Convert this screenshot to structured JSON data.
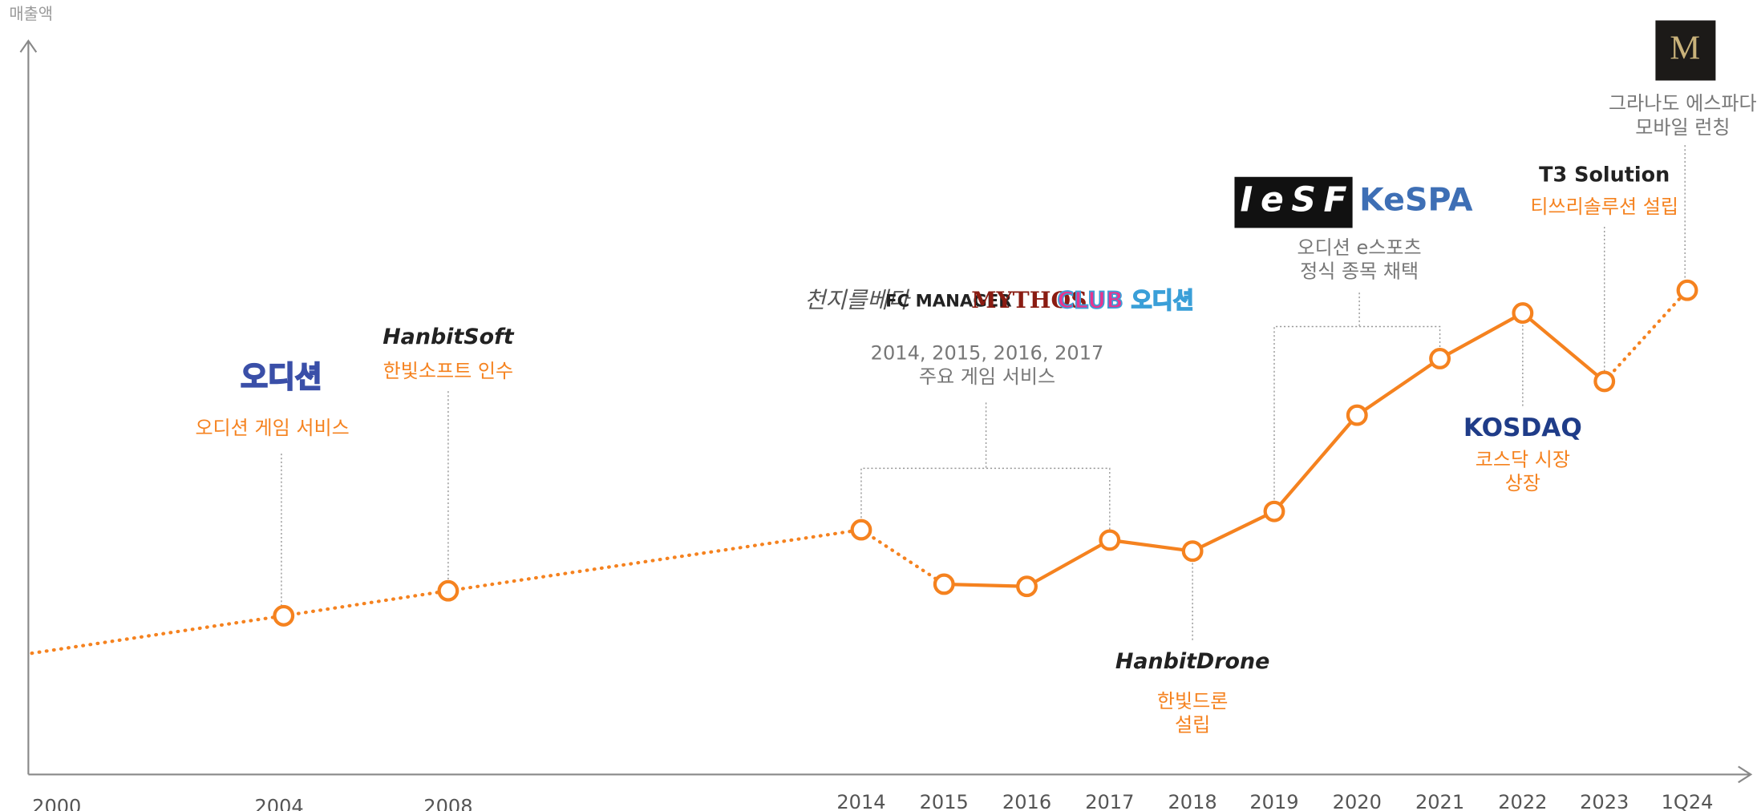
{
  "chart_data": {
    "type": "line",
    "y_label": "매출액",
    "categories": [
      "2000",
      "2004",
      "2008",
      "2014",
      "2015",
      "2016",
      "2017",
      "2018",
      "2019",
      "2020",
      "2021",
      "2022",
      "2023",
      "1Q24"
    ],
    "values": [
      16.5,
      21.6,
      25,
      33.3,
      25.9,
      25.6,
      31.9,
      30.4,
      35.8,
      48.9,
      56.6,
      62.8,
      53.5,
      65.9
    ],
    "markers": [
      false,
      true,
      true,
      true,
      true,
      true,
      true,
      true,
      true,
      true,
      true,
      true,
      true,
      true
    ],
    "segment_styles": [
      "dotted",
      "dotted",
      "dotted",
      "dotted",
      "solid",
      "solid",
      "solid",
      "solid",
      "solid",
      "solid",
      "solid",
      "solid",
      "dotted"
    ],
    "color": "#f5821f",
    "ylim": [
      0,
      100
    ],
    "annotations": [
      {
        "lines": [
          "오디션 게임 서비스"
        ],
        "logos": [
          "오디션"
        ],
        "color": "#f5821f"
      },
      {
        "lines": [
          "한빛소프트 인수"
        ],
        "logos": [
          "HanbitSoft"
        ],
        "color": "#f5821f"
      },
      {
        "lines": [
          "2014, 2015, 2016, 2017",
          "주요 게임 서비스"
        ],
        "logos": [
          "천지를베다",
          "FC MANAGER",
          "MYTHOS",
          "CLUB 오디션"
        ],
        "color": "#777777"
      },
      {
        "lines": [
          "한빛드론",
          "설립"
        ],
        "logos": [
          "HanbitDrone"
        ],
        "color": "#f5821f"
      },
      {
        "lines": [
          "오디션 e스포츠",
          "정식 종목 채택"
        ],
        "logos": [
          "IeSF",
          "KeSPA"
        ],
        "color": "#777777"
      },
      {
        "lines": [
          "코스닥 시장",
          "상장"
        ],
        "logos": [
          "KOSDAQ"
        ],
        "color": "#f5821f"
      },
      {
        "lines": [
          "티쓰리솔루션 설립"
        ],
        "logos": [
          "T3 Solution"
        ],
        "color": "#f5821f"
      },
      {
        "lines": [
          "그라나도 에스파다",
          "모바일 런칭"
        ],
        "logos": [],
        "color": "#777777"
      }
    ]
  }
}
